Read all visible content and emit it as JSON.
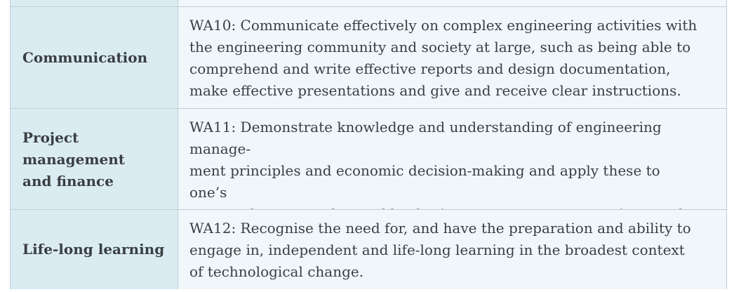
{
  "table": {
    "rows": [
      {
        "label": "Communication",
        "text": "WA10: Communicate effectively on complex engineering activities with\nthe engineering community and society at large, such as being able to\ncomprehend and write effective reports and design documentation,\nmake effective presentations and give and receive clear instructions."
      },
      {
        "label": "Project\nmanagement\nand finance",
        "text": "WA11: Demonstrate knowledge and understanding of engineering manage-\nment principles and economic decision-making and apply these to one’s\nown work as a member and leader in a team, to manage projects and in\nmulti-disciplinary environments."
      },
      {
        "label": "Life-long learning",
        "text": "WA12: Recognise the need for, and have the preparation and ability to\nengage in, independent and life-long learning in the broadest context\nof technological change."
      }
    ]
  }
}
